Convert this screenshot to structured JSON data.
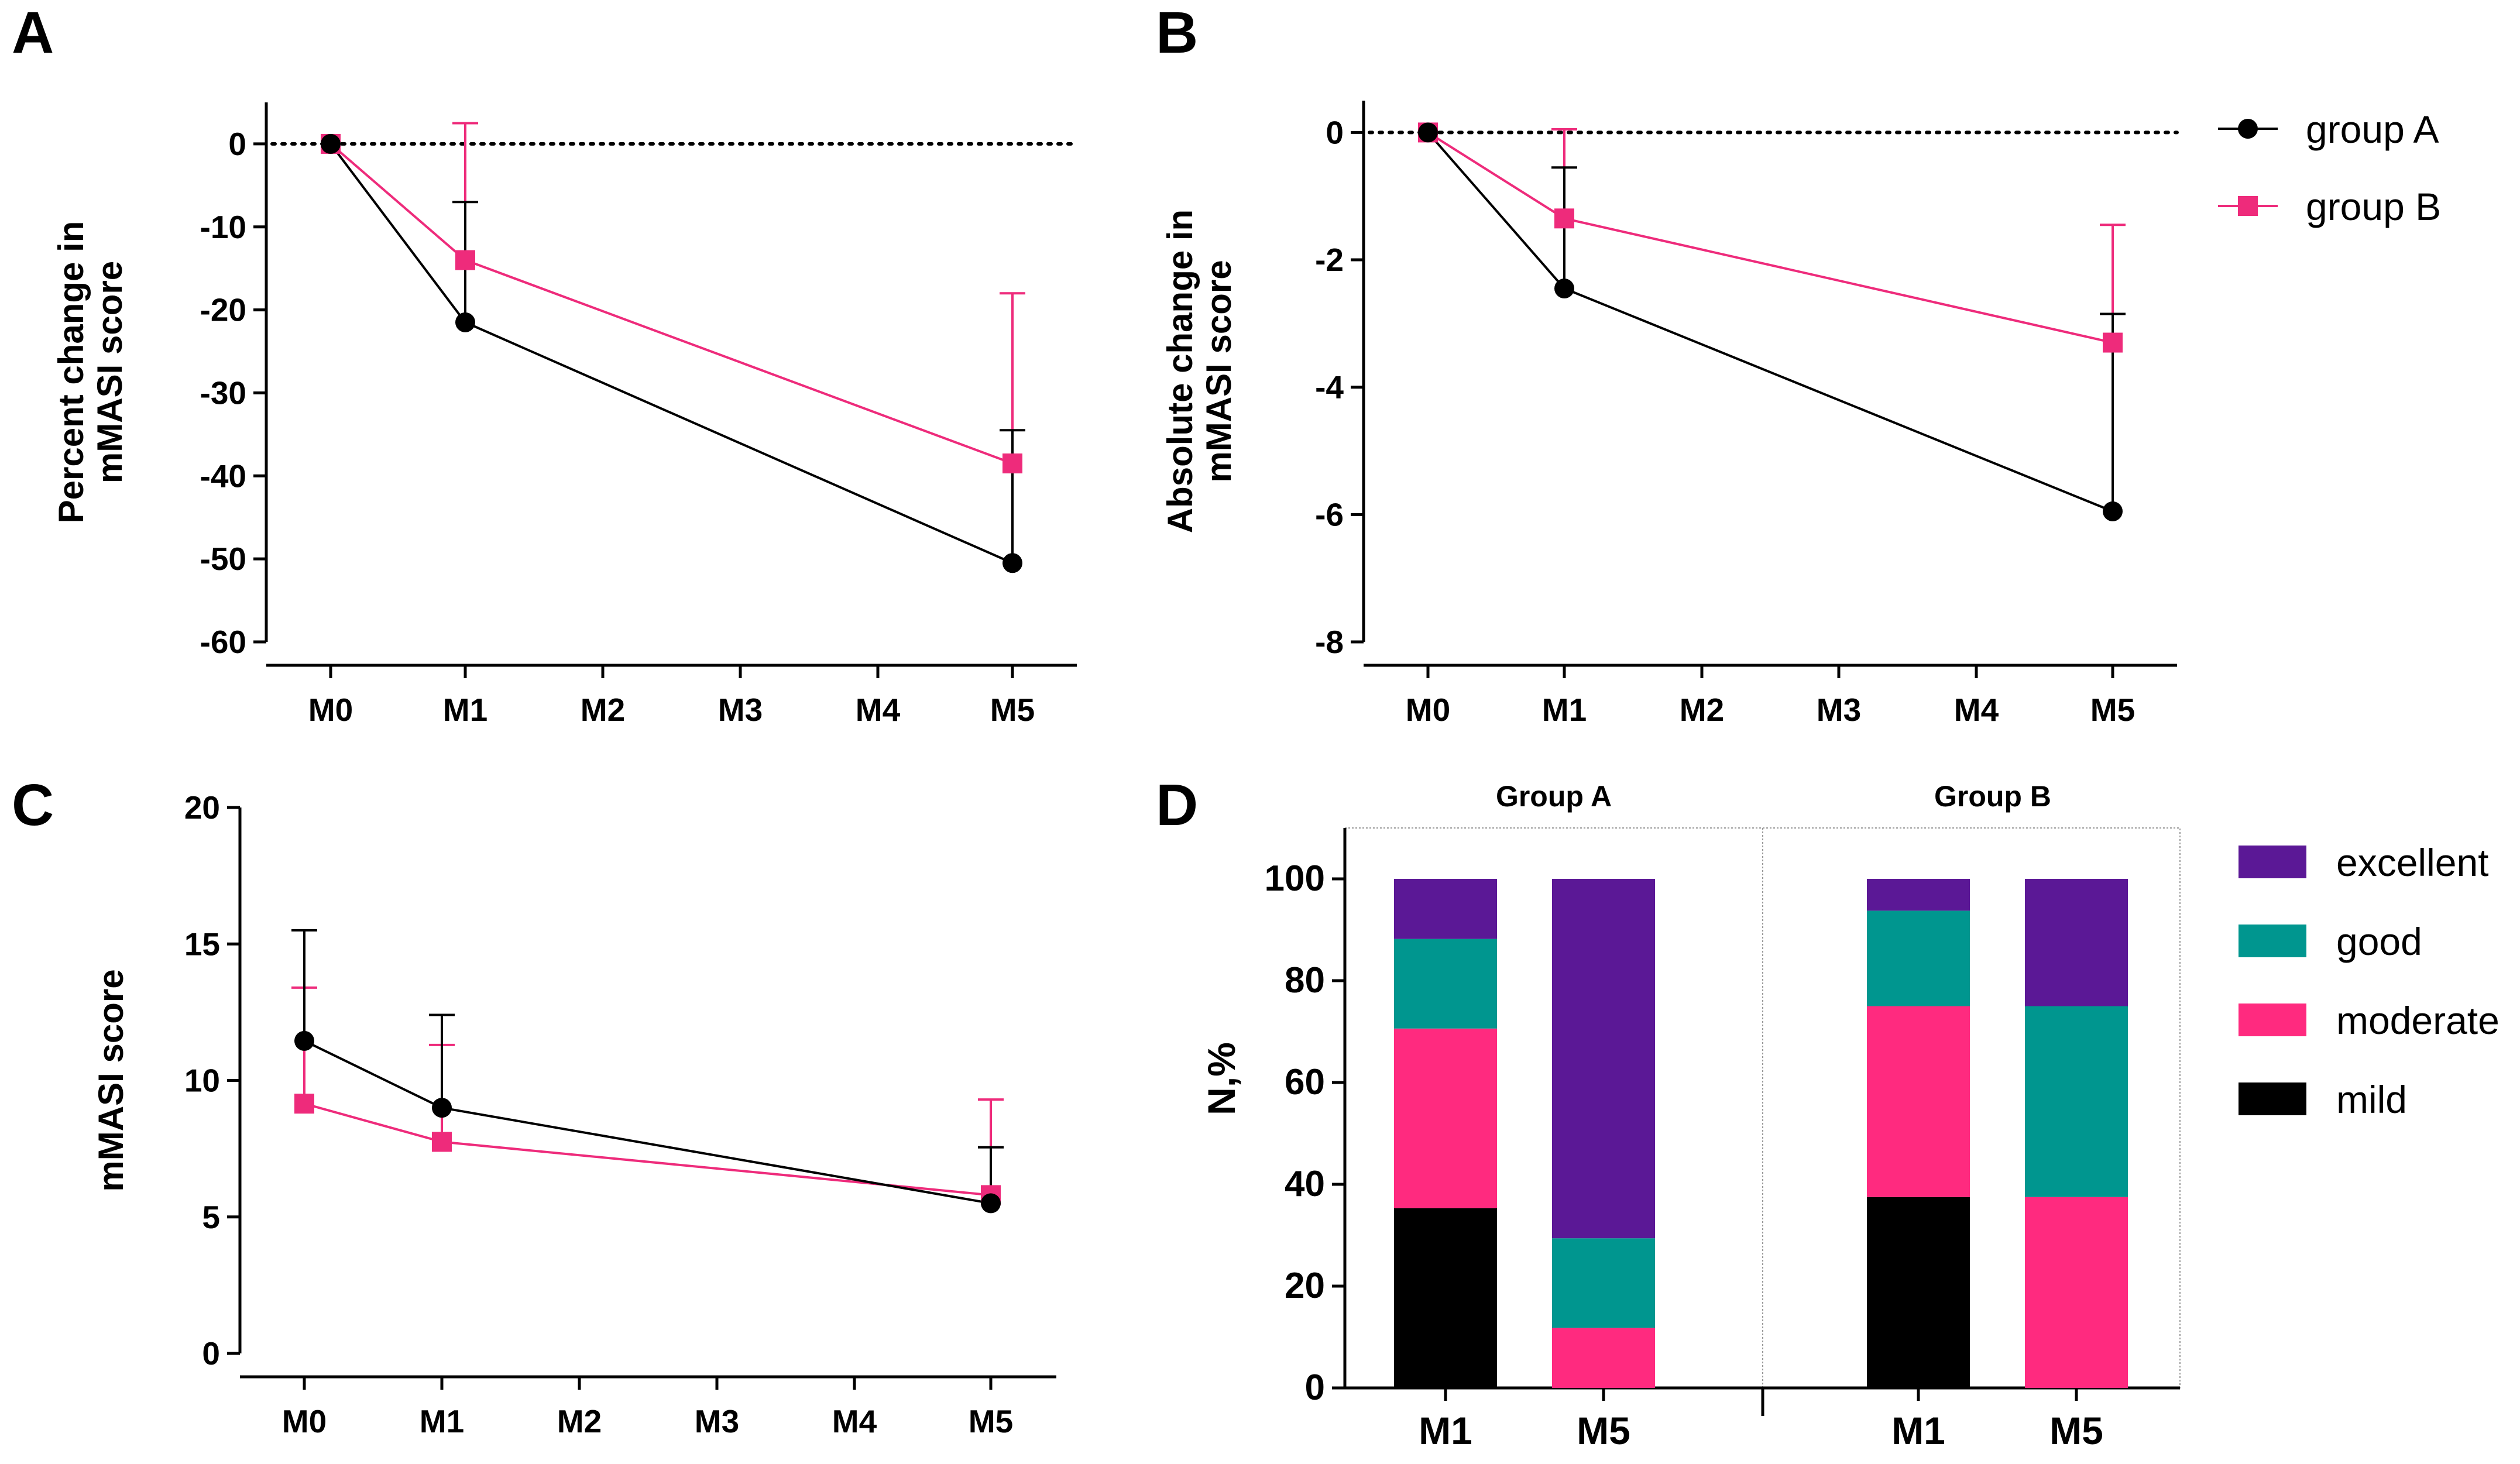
{
  "panels": {
    "A": {
      "letter": "A",
      "ylabel": [
        "Percent change in",
        "mMASI score"
      ],
      "yticks": [
        "0",
        "-10",
        "-20",
        "-30",
        "-40",
        "-50",
        "-60"
      ],
      "xticks": [
        "M0",
        "M1",
        "M2",
        "M3",
        "M4",
        "M5"
      ]
    },
    "B": {
      "letter": "B",
      "ylabel": [
        "Absolute change in",
        "mMASI score"
      ],
      "yticks": [
        "0",
        "-2",
        "-4",
        "-6",
        "-8"
      ],
      "xticks": [
        "M0",
        "M1",
        "M2",
        "M3",
        "M4",
        "M5"
      ]
    },
    "C": {
      "letter": "C",
      "ylabel": [
        "mMASI score"
      ],
      "yticks": [
        "20",
        "15",
        "10",
        "5",
        "0"
      ],
      "xticks": [
        "M0",
        "M1",
        "M2",
        "M3",
        "M4",
        "M5"
      ]
    },
    "D": {
      "letter": "D",
      "ylabel": [
        "N,%"
      ],
      "yticks": [
        "100",
        "80",
        "60",
        "40",
        "20",
        "0"
      ],
      "group_a": "Group A",
      "group_b": "Group B",
      "xticks": [
        "M1",
        "M5",
        "M1",
        "M5"
      ]
    }
  },
  "legend_lines": [
    {
      "label": "group A",
      "color": "#000000",
      "marker": "circle"
    },
    {
      "label": "group B",
      "color": "#ee2b7b",
      "marker": "square"
    }
  ],
  "legend_bars": [
    {
      "label": "excellent",
      "color": "#5b1896"
    },
    {
      "label": "good",
      "color": "#00968f"
    },
    {
      "label": "moderate",
      "color": "#ff2a7f"
    },
    {
      "label": "mild",
      "color": "#000000"
    }
  ],
  "chart_data": [
    {
      "type": "line",
      "panel": "A",
      "x": [
        "M0",
        "M1",
        "M5"
      ],
      "ylabel": "Percent change in mMASI score",
      "ylim": [
        -60,
        5
      ],
      "reference_line": 0,
      "series": [
        {
          "name": "group A",
          "values": [
            0,
            -21.5,
            -50.5
          ],
          "error_upper": [
            0,
            -7,
            -34.5
          ]
        },
        {
          "name": "group B",
          "values": [
            0,
            -14,
            -38.5
          ],
          "error_upper": [
            0,
            2.5,
            -18
          ]
        }
      ]
    },
    {
      "type": "line",
      "panel": "B",
      "x": [
        "M0",
        "M1",
        "M5"
      ],
      "ylabel": "Absolute change in mMASI score",
      "ylim": [
        -8,
        0.5
      ],
      "reference_line": 0,
      "series": [
        {
          "name": "group A",
          "values": [
            0,
            -2.45,
            -5.95
          ],
          "error_upper": [
            0,
            -0.55,
            -2.85
          ]
        },
        {
          "name": "group B",
          "values": [
            0,
            -1.35,
            -3.3
          ],
          "error_upper": [
            0,
            0.05,
            -1.45
          ]
        }
      ]
    },
    {
      "type": "line",
      "panel": "C",
      "x": [
        "M0",
        "M1",
        "M5"
      ],
      "ylabel": "mMASI score",
      "ylim": [
        0,
        20
      ],
      "series": [
        {
          "name": "group A",
          "values": [
            11.45,
            9.0,
            5.5
          ],
          "error_upper": [
            15.5,
            12.4,
            7.55
          ]
        },
        {
          "name": "group B",
          "values": [
            9.15,
            7.75,
            5.8
          ],
          "error_upper": [
            13.4,
            11.3,
            9.3
          ]
        }
      ]
    },
    {
      "type": "bar",
      "stacked": true,
      "panel": "D",
      "ylabel": "N,%",
      "ylim": [
        0,
        110
      ],
      "groups": [
        "Group A",
        "Group B"
      ],
      "categories": [
        "M1",
        "M5",
        "M1",
        "M5"
      ],
      "series": [
        {
          "name": "mild",
          "values": [
            35.3,
            0,
            37.5,
            0
          ]
        },
        {
          "name": "moderate",
          "values": [
            35.3,
            11.8,
            37.5,
            37.5
          ]
        },
        {
          "name": "good",
          "values": [
            17.6,
            17.6,
            18.75,
            37.5
          ]
        },
        {
          "name": "excellent",
          "values": [
            11.8,
            70.6,
            6.25,
            25
          ]
        }
      ]
    }
  ]
}
